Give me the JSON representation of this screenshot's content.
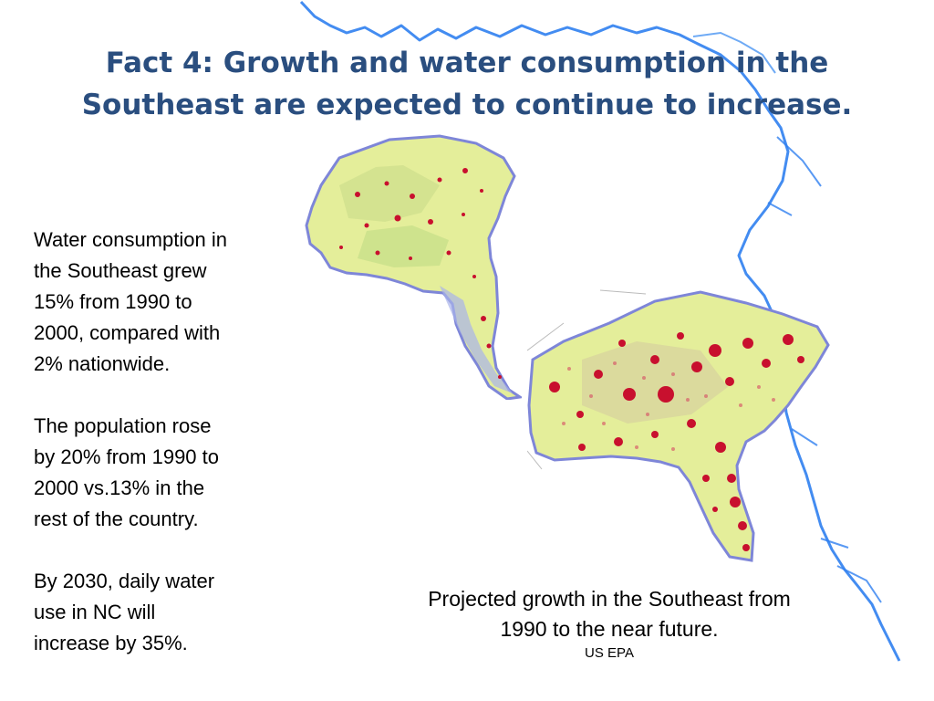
{
  "slide": {
    "title_line1": "Fact 4:  Growth and water consumption in the",
    "title_line2": "Southeast are expected to continue to increase.",
    "paragraphs": [
      {
        "lines": [
          "Water consumption in",
          "the Southeast grew",
          "15% from 1990 to",
          "2000, compared with",
          "2% nationwide."
        ]
      },
      {
        "lines": [
          "The population rose",
          "by 20% from 1990 to",
          "2000 vs.13% in the",
          "rest of the country."
        ]
      },
      {
        "lines": [
          "By 2030, daily water",
          "use in NC will",
          "increase by 35%."
        ]
      }
    ],
    "caption_line1": "Projected growth in the Southeast from",
    "caption_line2": "1990 to the near future.",
    "source": "US EPA"
  },
  "colors": {
    "title": "#2a4e7f",
    "river": "#2f7ff0",
    "map_land": "#e4ee9a",
    "map_coast": "#7e86d8",
    "urban": "#c8102e"
  }
}
